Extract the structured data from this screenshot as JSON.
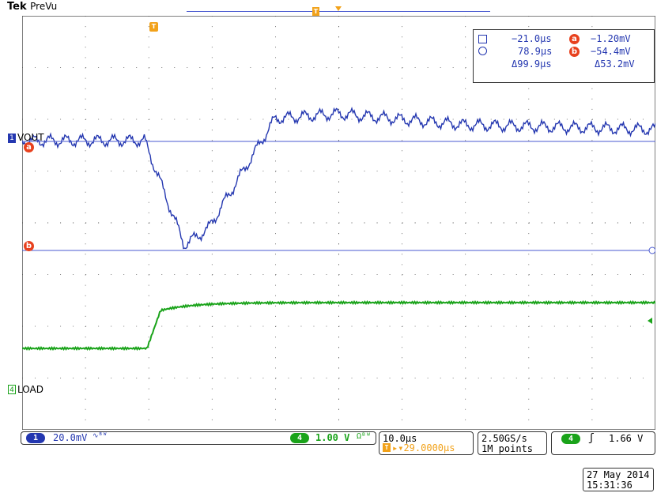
{
  "brand": {
    "name": "Tek",
    "mode": "PreVu"
  },
  "markers": {
    "trigger": "T",
    "ch1": "1",
    "ch4": "4",
    "cursor_a": "a",
    "cursor_b": "b"
  },
  "channels": {
    "ch1_label": "VOUT",
    "ch4_label": "LOAD"
  },
  "cursors": {
    "a_time": "−21.0μs",
    "b_time": "78.9μs",
    "delta_time": "Δ99.9μs",
    "a_volt": "−1.20mV",
    "b_volt": "−54.4mV",
    "delta_volt": "Δ53.2mV"
  },
  "status": {
    "ch1_scale": "20.0mV",
    "ch1_bw_icon": "∿ᴮᵂ",
    "ch4_scale": "1.00 V",
    "ch4_coupling": "Ωᴮᵂ",
    "timebase": "10.0μs",
    "trigger_position": "▸▾29.0000μs",
    "sample_rate": "2.50GS/s",
    "record_length": "1M points",
    "trigger_slope": "ʃ",
    "trigger_level": "1.66 V"
  },
  "datetime": {
    "date": "27 May 2014",
    "time": "15:31:36"
  },
  "colors": {
    "ch1": "#2437b0",
    "ch4": "#1aa31a",
    "trigger": "#f2a21a",
    "cursor_badge": "#e8411e",
    "grid": "#555555"
  }
}
